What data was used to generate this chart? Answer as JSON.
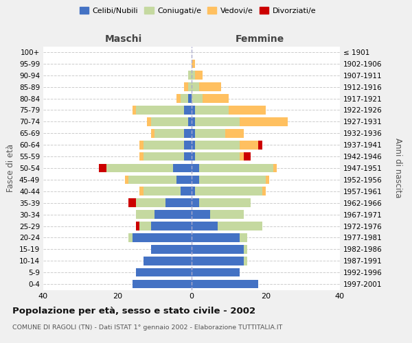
{
  "age_groups": [
    "0-4",
    "5-9",
    "10-14",
    "15-19",
    "20-24",
    "25-29",
    "30-34",
    "35-39",
    "40-44",
    "45-49",
    "50-54",
    "55-59",
    "60-64",
    "65-69",
    "70-74",
    "75-79",
    "80-84",
    "85-89",
    "90-94",
    "95-99",
    "100+"
  ],
  "birth_years": [
    "1997-2001",
    "1992-1996",
    "1987-1991",
    "1982-1986",
    "1977-1981",
    "1972-1976",
    "1967-1971",
    "1962-1966",
    "1957-1961",
    "1952-1956",
    "1947-1951",
    "1942-1946",
    "1937-1941",
    "1932-1936",
    "1927-1931",
    "1922-1926",
    "1917-1921",
    "1912-1916",
    "1907-1911",
    "1902-1906",
    "≤ 1901"
  ],
  "maschi": {
    "celibi": [
      16,
      15,
      13,
      11,
      16,
      11,
      10,
      7,
      3,
      4,
      5,
      2,
      2,
      2,
      1,
      2,
      1,
      0,
      0,
      0,
      0
    ],
    "coniugati": [
      0,
      0,
      0,
      0,
      1,
      3,
      5,
      8,
      10,
      13,
      18,
      11,
      11,
      8,
      10,
      13,
      2,
      1,
      1,
      0,
      0
    ],
    "vedovi": [
      0,
      0,
      0,
      0,
      0,
      0,
      0,
      0,
      1,
      1,
      0,
      1,
      1,
      1,
      1,
      1,
      1,
      1,
      0,
      0,
      0
    ],
    "divorziati": [
      0,
      0,
      0,
      0,
      0,
      1,
      0,
      2,
      0,
      0,
      2,
      0,
      0,
      0,
      0,
      0,
      0,
      0,
      0,
      0,
      0
    ]
  },
  "femmine": {
    "nubili": [
      18,
      13,
      14,
      14,
      13,
      7,
      5,
      2,
      1,
      2,
      2,
      1,
      1,
      1,
      1,
      1,
      0,
      0,
      0,
      0,
      0
    ],
    "coniugate": [
      0,
      0,
      1,
      1,
      2,
      12,
      9,
      14,
      18,
      18,
      20,
      12,
      12,
      8,
      12,
      9,
      3,
      2,
      1,
      0,
      0
    ],
    "vedove": [
      0,
      0,
      0,
      0,
      0,
      0,
      0,
      0,
      1,
      1,
      1,
      1,
      5,
      5,
      13,
      10,
      7,
      6,
      2,
      1,
      0
    ],
    "divorziate": [
      0,
      0,
      0,
      0,
      0,
      0,
      0,
      0,
      0,
      0,
      0,
      2,
      1,
      0,
      0,
      0,
      0,
      0,
      0,
      0,
      0
    ]
  },
  "color_celibi": "#4472c4",
  "color_coniugati": "#c5d9a0",
  "color_vedovi": "#ffc060",
  "color_divorziati": "#cc0000",
  "title": "Popolazione per età, sesso e stato civile - 2002",
  "subtitle": "COMUNE DI RAGOLI (TN) - Dati ISTAT 1° gennaio 2002 - Elaborazione TUTTITALIA.IT",
  "xlabel_left": "Maschi",
  "xlabel_right": "Femmine",
  "ylabel_left": "Fasce di età",
  "ylabel_right": "Anni di nascita",
  "xlim": 40,
  "background_color": "#f0f0f0",
  "plot_bg_color": "#ffffff",
  "grid_color": "#cccccc"
}
